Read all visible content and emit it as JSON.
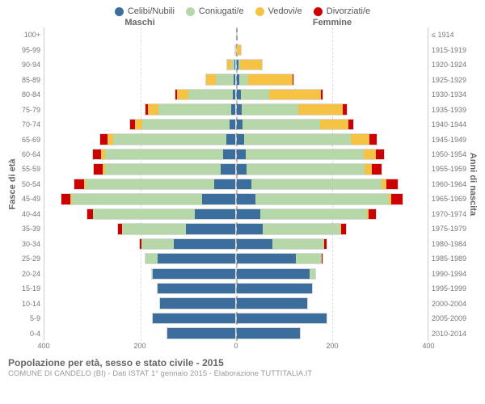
{
  "legend": [
    {
      "label": "Celibi/Nubili",
      "color": "#3b6e9c"
    },
    {
      "label": "Coniugati/e",
      "color": "#b6d7a8"
    },
    {
      "label": "Vedovi/e",
      "color": "#f6c244"
    },
    {
      "label": "Divorziati/e",
      "color": "#cc0000"
    }
  ],
  "headers": {
    "male": "Maschi",
    "female": "Femmine"
  },
  "axis_labels": {
    "left": "Fasce di età",
    "right": "Anni di nascita"
  },
  "axis_domain_max": 400,
  "x_ticks": [
    400,
    200,
    0,
    200,
    400
  ],
  "title": "Popolazione per età, sesso e stato civile - 2015",
  "subtitle": "COMUNE DI CANDELO (BI) - Dati ISTAT 1° gennaio 2015 - Elaborazione TUTTITALIA.IT",
  "colors": {
    "celibi": "#3b6e9c",
    "coniugati": "#b6d7a8",
    "vedovi": "#f6c244",
    "divorziati": "#cc0000",
    "bg": "#ffffff",
    "grid": "#dddddd",
    "center": "#bbbbbb",
    "text": "#666666"
  },
  "rows": [
    {
      "age": "100+",
      "birth": "≤ 1914",
      "m": {
        "c": 0,
        "co": 0,
        "v": 0,
        "d": 0
      },
      "f": {
        "c": 0,
        "co": 0,
        "v": 2,
        "d": 0
      }
    },
    {
      "age": "95-99",
      "birth": "1915-1919",
      "m": {
        "c": 0,
        "co": 0,
        "v": 3,
        "d": 0
      },
      "f": {
        "c": 1,
        "co": 0,
        "v": 10,
        "d": 0
      }
    },
    {
      "age": "90-94",
      "birth": "1920-1924",
      "m": {
        "c": 2,
        "co": 8,
        "v": 10,
        "d": 0
      },
      "f": {
        "c": 3,
        "co": 5,
        "v": 48,
        "d": 0
      }
    },
    {
      "age": "85-89",
      "birth": "1925-1929",
      "m": {
        "c": 3,
        "co": 40,
        "v": 22,
        "d": 0
      },
      "f": {
        "c": 5,
        "co": 20,
        "v": 95,
        "d": 2
      }
    },
    {
      "age": "80-84",
      "birth": "1930-1934",
      "m": {
        "c": 5,
        "co": 95,
        "v": 25,
        "d": 3
      },
      "f": {
        "c": 8,
        "co": 60,
        "v": 110,
        "d": 5
      }
    },
    {
      "age": "75-79",
      "birth": "1935-1939",
      "m": {
        "c": 8,
        "co": 155,
        "v": 22,
        "d": 5
      },
      "f": {
        "c": 10,
        "co": 120,
        "v": 95,
        "d": 8
      }
    },
    {
      "age": "70-74",
      "birth": "1940-1944",
      "m": {
        "c": 12,
        "co": 185,
        "v": 15,
        "d": 10
      },
      "f": {
        "c": 12,
        "co": 165,
        "v": 60,
        "d": 10
      }
    },
    {
      "age": "65-69",
      "birth": "1945-1949",
      "m": {
        "c": 18,
        "co": 240,
        "v": 12,
        "d": 15
      },
      "f": {
        "c": 15,
        "co": 225,
        "v": 40,
        "d": 15
      }
    },
    {
      "age": "60-64",
      "birth": "1950-1954",
      "m": {
        "c": 25,
        "co": 250,
        "v": 8,
        "d": 18
      },
      "f": {
        "c": 18,
        "co": 250,
        "v": 25,
        "d": 18
      }
    },
    {
      "age": "55-59",
      "birth": "1955-1959",
      "m": {
        "c": 30,
        "co": 245,
        "v": 5,
        "d": 18
      },
      "f": {
        "c": 20,
        "co": 250,
        "v": 15,
        "d": 20
      }
    },
    {
      "age": "50-54",
      "birth": "1960-1964",
      "m": {
        "c": 45,
        "co": 270,
        "v": 3,
        "d": 22
      },
      "f": {
        "c": 30,
        "co": 275,
        "v": 10,
        "d": 25
      }
    },
    {
      "age": "45-49",
      "birth": "1965-1969",
      "m": {
        "c": 70,
        "co": 275,
        "v": 2,
        "d": 20
      },
      "f": {
        "c": 40,
        "co": 280,
        "v": 5,
        "d": 25
      }
    },
    {
      "age": "40-44",
      "birth": "1970-1974",
      "m": {
        "c": 85,
        "co": 215,
        "v": 1,
        "d": 12
      },
      "f": {
        "c": 50,
        "co": 225,
        "v": 3,
        "d": 15
      }
    },
    {
      "age": "35-39",
      "birth": "1975-1979",
      "m": {
        "c": 105,
        "co": 135,
        "v": 0,
        "d": 8
      },
      "f": {
        "c": 55,
        "co": 165,
        "v": 1,
        "d": 10
      }
    },
    {
      "age": "30-34",
      "birth": "1980-1984",
      "m": {
        "c": 130,
        "co": 70,
        "v": 0,
        "d": 3
      },
      "f": {
        "c": 75,
        "co": 110,
        "v": 0,
        "d": 5
      }
    },
    {
      "age": "25-29",
      "birth": "1985-1989",
      "m": {
        "c": 165,
        "co": 25,
        "v": 0,
        "d": 1
      },
      "f": {
        "c": 125,
        "co": 55,
        "v": 0,
        "d": 2
      }
    },
    {
      "age": "20-24",
      "birth": "1990-1994",
      "m": {
        "c": 175,
        "co": 3,
        "v": 0,
        "d": 0
      },
      "f": {
        "c": 155,
        "co": 12,
        "v": 0,
        "d": 0
      }
    },
    {
      "age": "15-19",
      "birth": "1995-1999",
      "m": {
        "c": 165,
        "co": 0,
        "v": 0,
        "d": 0
      },
      "f": {
        "c": 160,
        "co": 0,
        "v": 0,
        "d": 0
      }
    },
    {
      "age": "10-14",
      "birth": "2000-2004",
      "m": {
        "c": 160,
        "co": 0,
        "v": 0,
        "d": 0
      },
      "f": {
        "c": 150,
        "co": 0,
        "v": 0,
        "d": 0
      }
    },
    {
      "age": "5-9",
      "birth": "2005-2009",
      "m": {
        "c": 175,
        "co": 0,
        "v": 0,
        "d": 0
      },
      "f": {
        "c": 190,
        "co": 0,
        "v": 0,
        "d": 0
      }
    },
    {
      "age": "0-4",
      "birth": "2010-2014",
      "m": {
        "c": 145,
        "co": 0,
        "v": 0,
        "d": 0
      },
      "f": {
        "c": 135,
        "co": 0,
        "v": 0,
        "d": 0
      }
    }
  ]
}
